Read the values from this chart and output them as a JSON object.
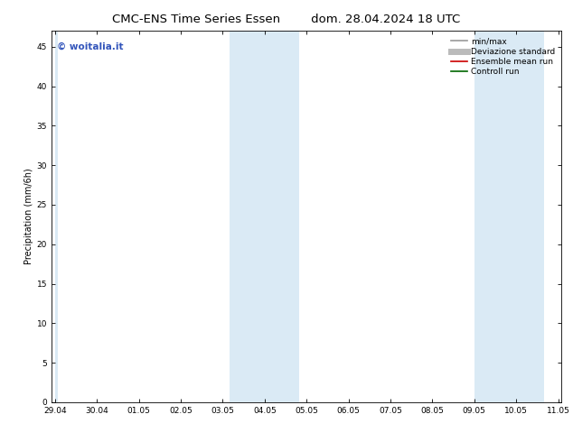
{
  "title_left": "CMC-ENS Time Series Essen",
  "title_right": "dom. 28.04.2024 18 UTC",
  "ylabel": "Precipitation (mm/6h)",
  "ylim": [
    0,
    47
  ],
  "yticks": [
    0,
    5,
    10,
    15,
    20,
    25,
    30,
    35,
    40,
    45
  ],
  "xtick_labels": [
    "29.04",
    "30.04",
    "01.05",
    "02.05",
    "03.05",
    "04.05",
    "05.05",
    "06.05",
    "07.05",
    "08.05",
    "09.05",
    "10.05",
    "11.05"
  ],
  "n_xticks": 13,
  "shaded_bands": [
    {
      "x_start": 0.0,
      "x_end": 0.08,
      "color": "#daeaf5"
    },
    {
      "x_start": 4.17,
      "x_end": 5.0,
      "color": "#daeaf5"
    },
    {
      "x_start": 5.0,
      "x_end": 5.83,
      "color": "#daeaf5"
    },
    {
      "x_start": 10.0,
      "x_end": 10.83,
      "color": "#daeaf5"
    },
    {
      "x_start": 10.83,
      "x_end": 11.67,
      "color": "#daeaf5"
    }
  ],
  "legend_entries": [
    {
      "label": "min/max",
      "color": "#999999",
      "lw": 1.2
    },
    {
      "label": "Deviazione standard",
      "color": "#bbbbbb",
      "lw": 5
    },
    {
      "label": "Ensemble mean run",
      "color": "#cc0000",
      "lw": 1.2
    },
    {
      "label": "Controll run",
      "color": "#006600",
      "lw": 1.2
    }
  ],
  "watermark_text": "© woitalia.it",
  "watermark_color": "#3355bb",
  "background_color": "#ffffff",
  "plot_bg_color": "#ffffff",
  "xlim": [
    -0.08,
    12.08
  ],
  "figsize": [
    6.34,
    4.9
  ],
  "dpi": 100
}
